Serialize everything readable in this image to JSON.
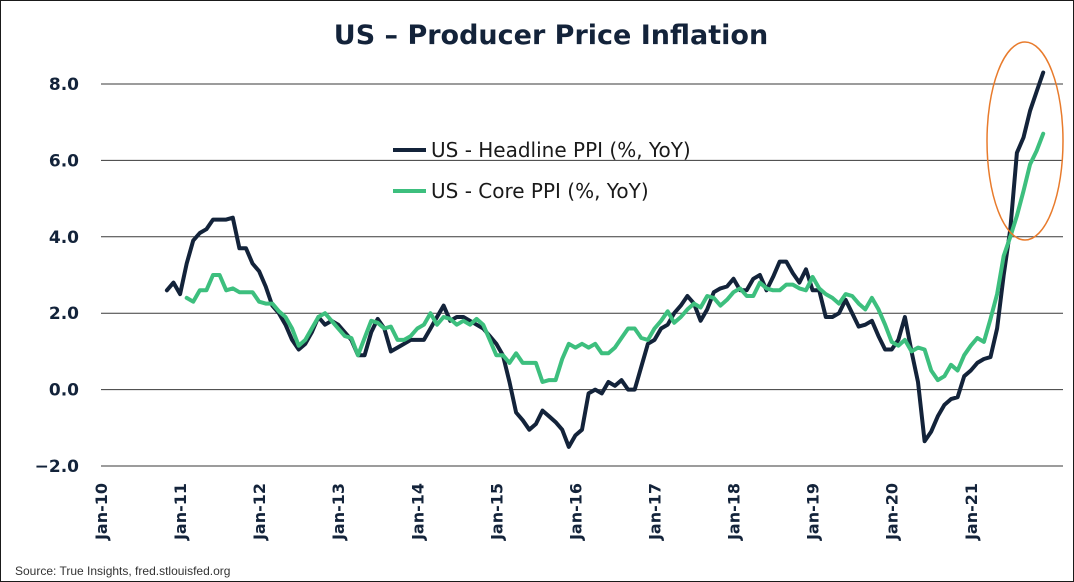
{
  "chart_data": {
    "type": "line",
    "title": "US – Producer Price Inflation",
    "xlabel": "",
    "ylabel": "",
    "ylim": [
      -2.0,
      8.0
    ],
    "yticks": [
      -2.0,
      0.0,
      2.0,
      4.0,
      6.0,
      8.0
    ],
    "ytick_labels": [
      "−2.0",
      "0.0",
      "2.0",
      "4.0",
      "6.0",
      "8.0"
    ],
    "xlim": [
      "2010-01",
      "2022-03"
    ],
    "xticks": [
      "2010-01",
      "2011-01",
      "2012-01",
      "2013-01",
      "2014-01",
      "2015-01",
      "2016-01",
      "2017-01",
      "2018-01",
      "2019-01",
      "2020-01",
      "2021-01"
    ],
    "xtick_labels": [
      "Jan-10",
      "Jan-11",
      "Jan-12",
      "Jan-13",
      "Jan-14",
      "Jan-15",
      "Jan-16",
      "Jan-17",
      "Jan-18",
      "Jan-19",
      "Jan-20",
      "Jan-21"
    ],
    "grid": true,
    "legend_position": "upper-center",
    "annotation": "orange ellipse highlighting 2021 surge",
    "source": "Source: True Insights, fred.stlouisfed.org",
    "series": [
      {
        "name": "US - Headline PPI (%, YoY)",
        "color": "#13233a",
        "start": "2010-11",
        "values": [
          2.6,
          2.8,
          2.5,
          3.3,
          3.9,
          4.1,
          4.2,
          4.45,
          4.45,
          4.45,
          4.5,
          3.7,
          3.7,
          3.3,
          3.1,
          2.7,
          2.2,
          2.0,
          1.7,
          1.3,
          1.05,
          1.2,
          1.5,
          1.9,
          1.7,
          1.8,
          1.7,
          1.5,
          1.3,
          0.9,
          0.9,
          1.5,
          1.85,
          1.6,
          1.0,
          1.1,
          1.2,
          1.3,
          1.3,
          1.3,
          1.6,
          1.9,
          2.2,
          1.8,
          1.9,
          1.9,
          1.8,
          1.7,
          1.6,
          1.4,
          1.2,
          0.9,
          0.2,
          -0.6,
          -0.8,
          -1.05,
          -0.9,
          -0.55,
          -0.7,
          -0.85,
          -1.05,
          -1.5,
          -1.2,
          -1.05,
          -0.1,
          0.0,
          -0.1,
          0.2,
          0.1,
          0.25,
          0.0,
          0.0,
          0.6,
          1.2,
          1.3,
          1.6,
          1.7,
          2.0,
          2.2,
          2.45,
          2.25,
          1.8,
          2.1,
          2.55,
          2.65,
          2.7,
          2.9,
          2.6,
          2.6,
          2.9,
          3.0,
          2.6,
          2.95,
          3.35,
          3.35,
          3.05,
          2.8,
          3.15,
          2.6,
          2.6,
          1.9,
          1.9,
          2.0,
          2.35,
          2.0,
          1.65,
          1.7,
          1.8,
          1.4,
          1.05,
          1.05,
          1.3,
          1.9,
          1.0,
          0.2,
          -1.35,
          -1.1,
          -0.7,
          -0.4,
          -0.25,
          -0.2,
          0.35,
          0.5,
          0.7,
          0.8,
          0.85,
          1.6,
          3.0,
          4.2,
          6.2,
          6.6,
          7.3,
          7.8,
          8.3
        ]
      },
      {
        "name": "US - Core PPI (%, YoY)",
        "color": "#3dbf7e",
        "start": "2011-02",
        "values": [
          2.4,
          2.3,
          2.6,
          2.6,
          3.0,
          3.0,
          2.6,
          2.65,
          2.55,
          2.55,
          2.55,
          2.3,
          2.25,
          2.25,
          2.05,
          1.9,
          1.6,
          1.15,
          1.3,
          1.6,
          1.9,
          2.0,
          1.8,
          1.6,
          1.4,
          1.35,
          0.9,
          1.35,
          1.8,
          1.75,
          1.6,
          1.65,
          1.3,
          1.3,
          1.4,
          1.6,
          1.7,
          2.0,
          1.7,
          1.9,
          1.85,
          1.7,
          1.8,
          1.7,
          1.85,
          1.7,
          1.3,
          0.9,
          0.9,
          0.7,
          0.95,
          0.7,
          0.7,
          0.7,
          0.2,
          0.25,
          0.25,
          0.8,
          1.2,
          1.1,
          1.2,
          1.1,
          1.2,
          0.95,
          0.95,
          1.1,
          1.35,
          1.6,
          1.6,
          1.35,
          1.3,
          1.6,
          1.8,
          2.05,
          1.75,
          1.9,
          2.1,
          2.25,
          2.15,
          2.45,
          2.4,
          2.2,
          2.35,
          2.55,
          2.65,
          2.45,
          2.45,
          2.8,
          2.65,
          2.6,
          2.6,
          2.75,
          2.75,
          2.65,
          2.6,
          2.95,
          2.65,
          2.5,
          2.4,
          2.25,
          2.5,
          2.45,
          2.25,
          2.1,
          2.4,
          2.1,
          1.7,
          1.25,
          1.15,
          1.3,
          1.0,
          1.1,
          1.05,
          0.5,
          0.25,
          0.35,
          0.65,
          0.5,
          0.9,
          1.15,
          1.35,
          1.25,
          1.85,
          2.5,
          3.5,
          4.0,
          4.55,
          5.2,
          5.9,
          6.25,
          6.7
        ]
      }
    ]
  }
}
